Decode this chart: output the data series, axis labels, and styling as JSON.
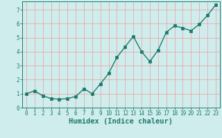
{
  "x": [
    0,
    1,
    2,
    3,
    4,
    5,
    6,
    7,
    8,
    9,
    10,
    11,
    12,
    13,
    14,
    15,
    16,
    17,
    18,
    19,
    20,
    21,
    22,
    23
  ],
  "y": [
    1.0,
    1.2,
    0.85,
    0.65,
    0.6,
    0.65,
    0.8,
    1.35,
    1.0,
    1.7,
    2.45,
    3.6,
    4.35,
    5.1,
    4.0,
    3.3,
    4.1,
    5.4,
    5.85,
    5.7,
    5.5,
    5.95,
    6.6,
    7.35
  ],
  "line_color": "#1a7a6a",
  "marker_color": "#1a7a6a",
  "bg_color": "#d0eded",
  "grid_color": "#e8a8a8",
  "xlabel": "Humidex (Indice chaleur)",
  "xlim": [
    -0.5,
    23.5
  ],
  "ylim": [
    0,
    7.6
  ],
  "yticks": [
    0,
    1,
    2,
    3,
    4,
    5,
    6,
    7
  ],
  "xticks": [
    0,
    1,
    2,
    3,
    4,
    5,
    6,
    7,
    8,
    9,
    10,
    11,
    12,
    13,
    14,
    15,
    16,
    17,
    18,
    19,
    20,
    21,
    22,
    23
  ],
  "tick_fontsize": 5.5,
  "xlabel_fontsize": 7.5,
  "marker_size": 2.5,
  "line_width": 1.0
}
